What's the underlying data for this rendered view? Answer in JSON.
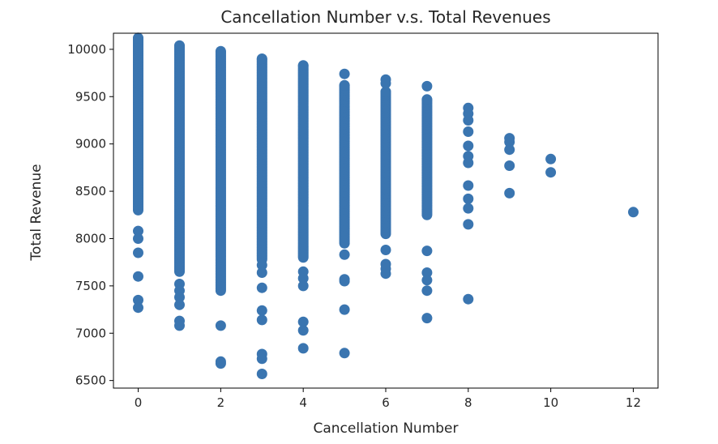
{
  "chart_data": {
    "type": "scatter",
    "title": "Cancellation Number v.s. Total Revenues",
    "xlabel": "Cancellation Number",
    "ylabel": "Total Revenue",
    "xlim": [
      -0.6,
      12.6
    ],
    "ylim": [
      6420,
      10170
    ],
    "xticks": [
      0,
      2,
      4,
      6,
      8,
      10,
      12
    ],
    "yticks": [
      6500,
      7000,
      7500,
      8000,
      8500,
      9000,
      9500,
      10000
    ],
    "grid": false,
    "marker_color": "#3a75b0",
    "series": [
      {
        "dense_ranges": [
          {
            "x": 0,
            "from": 8300,
            "to": 10120
          },
          {
            "x": 1,
            "from": 7650,
            "to": 10040
          },
          {
            "x": 2,
            "from": 7450,
            "to": 9980
          },
          {
            "x": 3,
            "from": 7780,
            "to": 9900
          },
          {
            "x": 4,
            "from": 7800,
            "to": 9830
          },
          {
            "x": 5,
            "from": 7950,
            "to": 9620
          },
          {
            "x": 6,
            "from": 8050,
            "to": 9550
          },
          {
            "x": 7,
            "from": 8250,
            "to": 9470
          }
        ],
        "points": [
          {
            "x": 0,
            "y": 8080
          },
          {
            "x": 0,
            "y": 8000
          },
          {
            "x": 0,
            "y": 7850
          },
          {
            "x": 0,
            "y": 7600
          },
          {
            "x": 0,
            "y": 7350
          },
          {
            "x": 0,
            "y": 7270
          },
          {
            "x": 1,
            "y": 7520
          },
          {
            "x": 1,
            "y": 7450
          },
          {
            "x": 1,
            "y": 7380
          },
          {
            "x": 1,
            "y": 7300
          },
          {
            "x": 1,
            "y": 7130
          },
          {
            "x": 1,
            "y": 7080
          },
          {
            "x": 2,
            "y": 7080
          },
          {
            "x": 2,
            "y": 6700
          },
          {
            "x": 2,
            "y": 6680
          },
          {
            "x": 3,
            "y": 7720
          },
          {
            "x": 3,
            "y": 7640
          },
          {
            "x": 3,
            "y": 7480
          },
          {
            "x": 3,
            "y": 7240
          },
          {
            "x": 3,
            "y": 7140
          },
          {
            "x": 3,
            "y": 6780
          },
          {
            "x": 3,
            "y": 6730
          },
          {
            "x": 3,
            "y": 6570
          },
          {
            "x": 4,
            "y": 7650
          },
          {
            "x": 4,
            "y": 7580
          },
          {
            "x": 4,
            "y": 7500
          },
          {
            "x": 4,
            "y": 7120
          },
          {
            "x": 4,
            "y": 7030
          },
          {
            "x": 4,
            "y": 6840
          },
          {
            "x": 5,
            "y": 9740
          },
          {
            "x": 5,
            "y": 7830
          },
          {
            "x": 5,
            "y": 7570
          },
          {
            "x": 5,
            "y": 7550
          },
          {
            "x": 5,
            "y": 7250
          },
          {
            "x": 5,
            "y": 6790
          },
          {
            "x": 6,
            "y": 9680
          },
          {
            "x": 6,
            "y": 9640
          },
          {
            "x": 6,
            "y": 7880
          },
          {
            "x": 6,
            "y": 7730
          },
          {
            "x": 6,
            "y": 7680
          },
          {
            "x": 6,
            "y": 7630
          },
          {
            "x": 7,
            "y": 9610
          },
          {
            "x": 7,
            "y": 7870
          },
          {
            "x": 7,
            "y": 7640
          },
          {
            "x": 7,
            "y": 7560
          },
          {
            "x": 7,
            "y": 7450
          },
          {
            "x": 7,
            "y": 7160
          },
          {
            "x": 8,
            "y": 9380
          },
          {
            "x": 8,
            "y": 9320
          },
          {
            "x": 8,
            "y": 9250
          },
          {
            "x": 8,
            "y": 9130
          },
          {
            "x": 8,
            "y": 8980
          },
          {
            "x": 8,
            "y": 8870
          },
          {
            "x": 8,
            "y": 8800
          },
          {
            "x": 8,
            "y": 8560
          },
          {
            "x": 8,
            "y": 8420
          },
          {
            "x": 8,
            "y": 8320
          },
          {
            "x": 8,
            "y": 8150
          },
          {
            "x": 8,
            "y": 7360
          },
          {
            "x": 9,
            "y": 9060
          },
          {
            "x": 9,
            "y": 9020
          },
          {
            "x": 9,
            "y": 8940
          },
          {
            "x": 9,
            "y": 8770
          },
          {
            "x": 9,
            "y": 8480
          },
          {
            "x": 10,
            "y": 8840
          },
          {
            "x": 10,
            "y": 8700
          },
          {
            "x": 12,
            "y": 8280
          }
        ]
      }
    ]
  }
}
